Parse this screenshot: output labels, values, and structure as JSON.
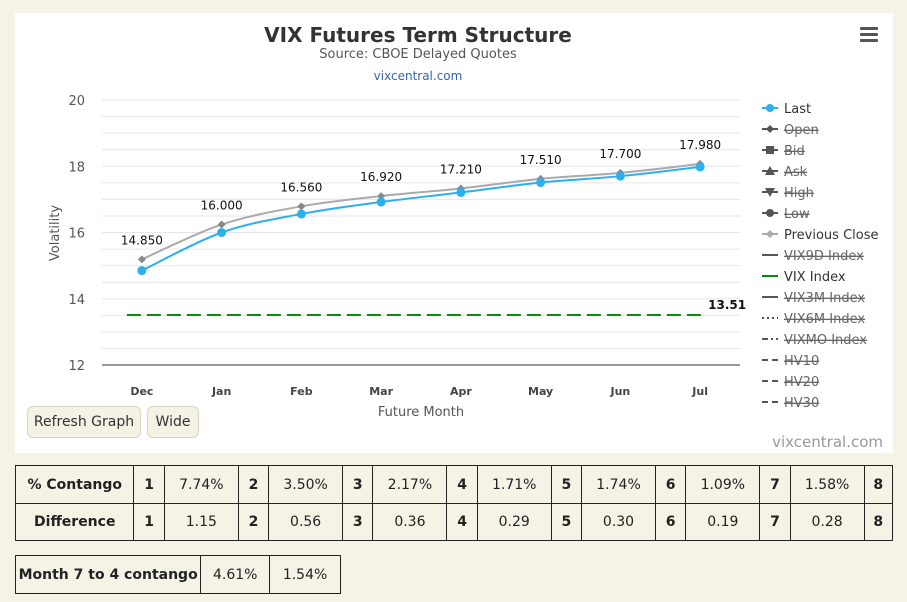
{
  "chart_data": {
    "type": "line",
    "title": "VIX Futures Term Structure",
    "subtitle": "Source: CBOE Delayed Quotes",
    "link": "vixcentral.com",
    "xlabel": "Future Month",
    "ylabel": "Volatility",
    "categories": [
      "Dec",
      "Jan",
      "Feb",
      "Mar",
      "Apr",
      "May",
      "Jun",
      "Jul"
    ],
    "ylim": [
      12,
      20
    ],
    "yticks": [
      12,
      14,
      16,
      18,
      20
    ],
    "grid": true,
    "legend_position": "right",
    "series": [
      {
        "name": "Last",
        "values": [
          14.85,
          16.0,
          16.56,
          16.92,
          17.21,
          17.51,
          17.7,
          17.98
        ],
        "labels": [
          "14.850",
          "16.000",
          "16.560",
          "16.920",
          "17.210",
          "17.510",
          "17.700",
          "17.980"
        ],
        "color": "#2bb0ee"
      },
      {
        "name": "Previous Close",
        "values": [
          15.19,
          16.24,
          16.79,
          17.1,
          17.33,
          17.62,
          17.8,
          18.07
        ],
        "color": "#aaaaaa"
      },
      {
        "name": "VIX Index",
        "values": [
          13.51,
          13.51,
          13.51,
          13.51,
          13.51,
          13.51,
          13.51,
          13.51
        ],
        "end_label": "13.51",
        "color": "#0a8a0a"
      }
    ],
    "legend": [
      {
        "name": "Last",
        "active": true,
        "symbol": "circle-line",
        "color": "#2bb0ee"
      },
      {
        "name": "Open",
        "active": false,
        "symbol": "diamond-line",
        "color": "#666666"
      },
      {
        "name": "Bid",
        "active": false,
        "symbol": "square-line",
        "color": "#666666"
      },
      {
        "name": "Ask",
        "active": false,
        "symbol": "triangle-line",
        "color": "#666666"
      },
      {
        "name": "High",
        "active": false,
        "symbol": "triangle-down-line",
        "color": "#666666"
      },
      {
        "name": "Low",
        "active": false,
        "symbol": "circle-line",
        "color": "#666666"
      },
      {
        "name": "Previous Close",
        "active": true,
        "symbol": "diamond-line",
        "color": "#aaaaaa"
      },
      {
        "name": "VIX9D Index",
        "active": false,
        "symbol": "line",
        "color": "#666666"
      },
      {
        "name": "VIX Index",
        "active": true,
        "symbol": "line",
        "color": "#0a8a0a"
      },
      {
        "name": "VIX3M Index",
        "active": false,
        "symbol": "line",
        "color": "#888888"
      },
      {
        "name": "VIX6M Index",
        "active": false,
        "symbol": "dotted",
        "color": "#666666"
      },
      {
        "name": "VIXMO Index",
        "active": false,
        "symbol": "dashdot",
        "color": "#666666"
      },
      {
        "name": "HV10",
        "active": false,
        "symbol": "dash",
        "color": "#666666"
      },
      {
        "name": "HV20",
        "active": false,
        "symbol": "dash",
        "color": "#666666"
      },
      {
        "name": "HV30",
        "active": false,
        "symbol": "dash",
        "color": "#666666"
      }
    ]
  },
  "buttons": {
    "refresh": "Refresh Graph",
    "wide": "Wide"
  },
  "credit": "vixcentral.com",
  "contango_table": {
    "rows": [
      {
        "label": "% Contango",
        "cells": [
          [
            "1",
            "7.74%"
          ],
          [
            "2",
            "3.50%"
          ],
          [
            "3",
            "2.17%"
          ],
          [
            "4",
            "1.71%"
          ],
          [
            "5",
            "1.74%"
          ],
          [
            "6",
            "1.09%"
          ],
          [
            "7",
            "1.58%"
          ]
        ],
        "last": "8"
      },
      {
        "label": "Difference",
        "cells": [
          [
            "1",
            "1.15"
          ],
          [
            "2",
            "0.56"
          ],
          [
            "3",
            "0.36"
          ],
          [
            "4",
            "0.29"
          ],
          [
            "5",
            "0.30"
          ],
          [
            "6",
            "0.19"
          ],
          [
            "7",
            "0.28"
          ]
        ],
        "last": "8"
      }
    ]
  },
  "month_table": {
    "label": "Month 7 to 4 contango",
    "values": [
      "4.61%",
      "1.54%"
    ]
  }
}
